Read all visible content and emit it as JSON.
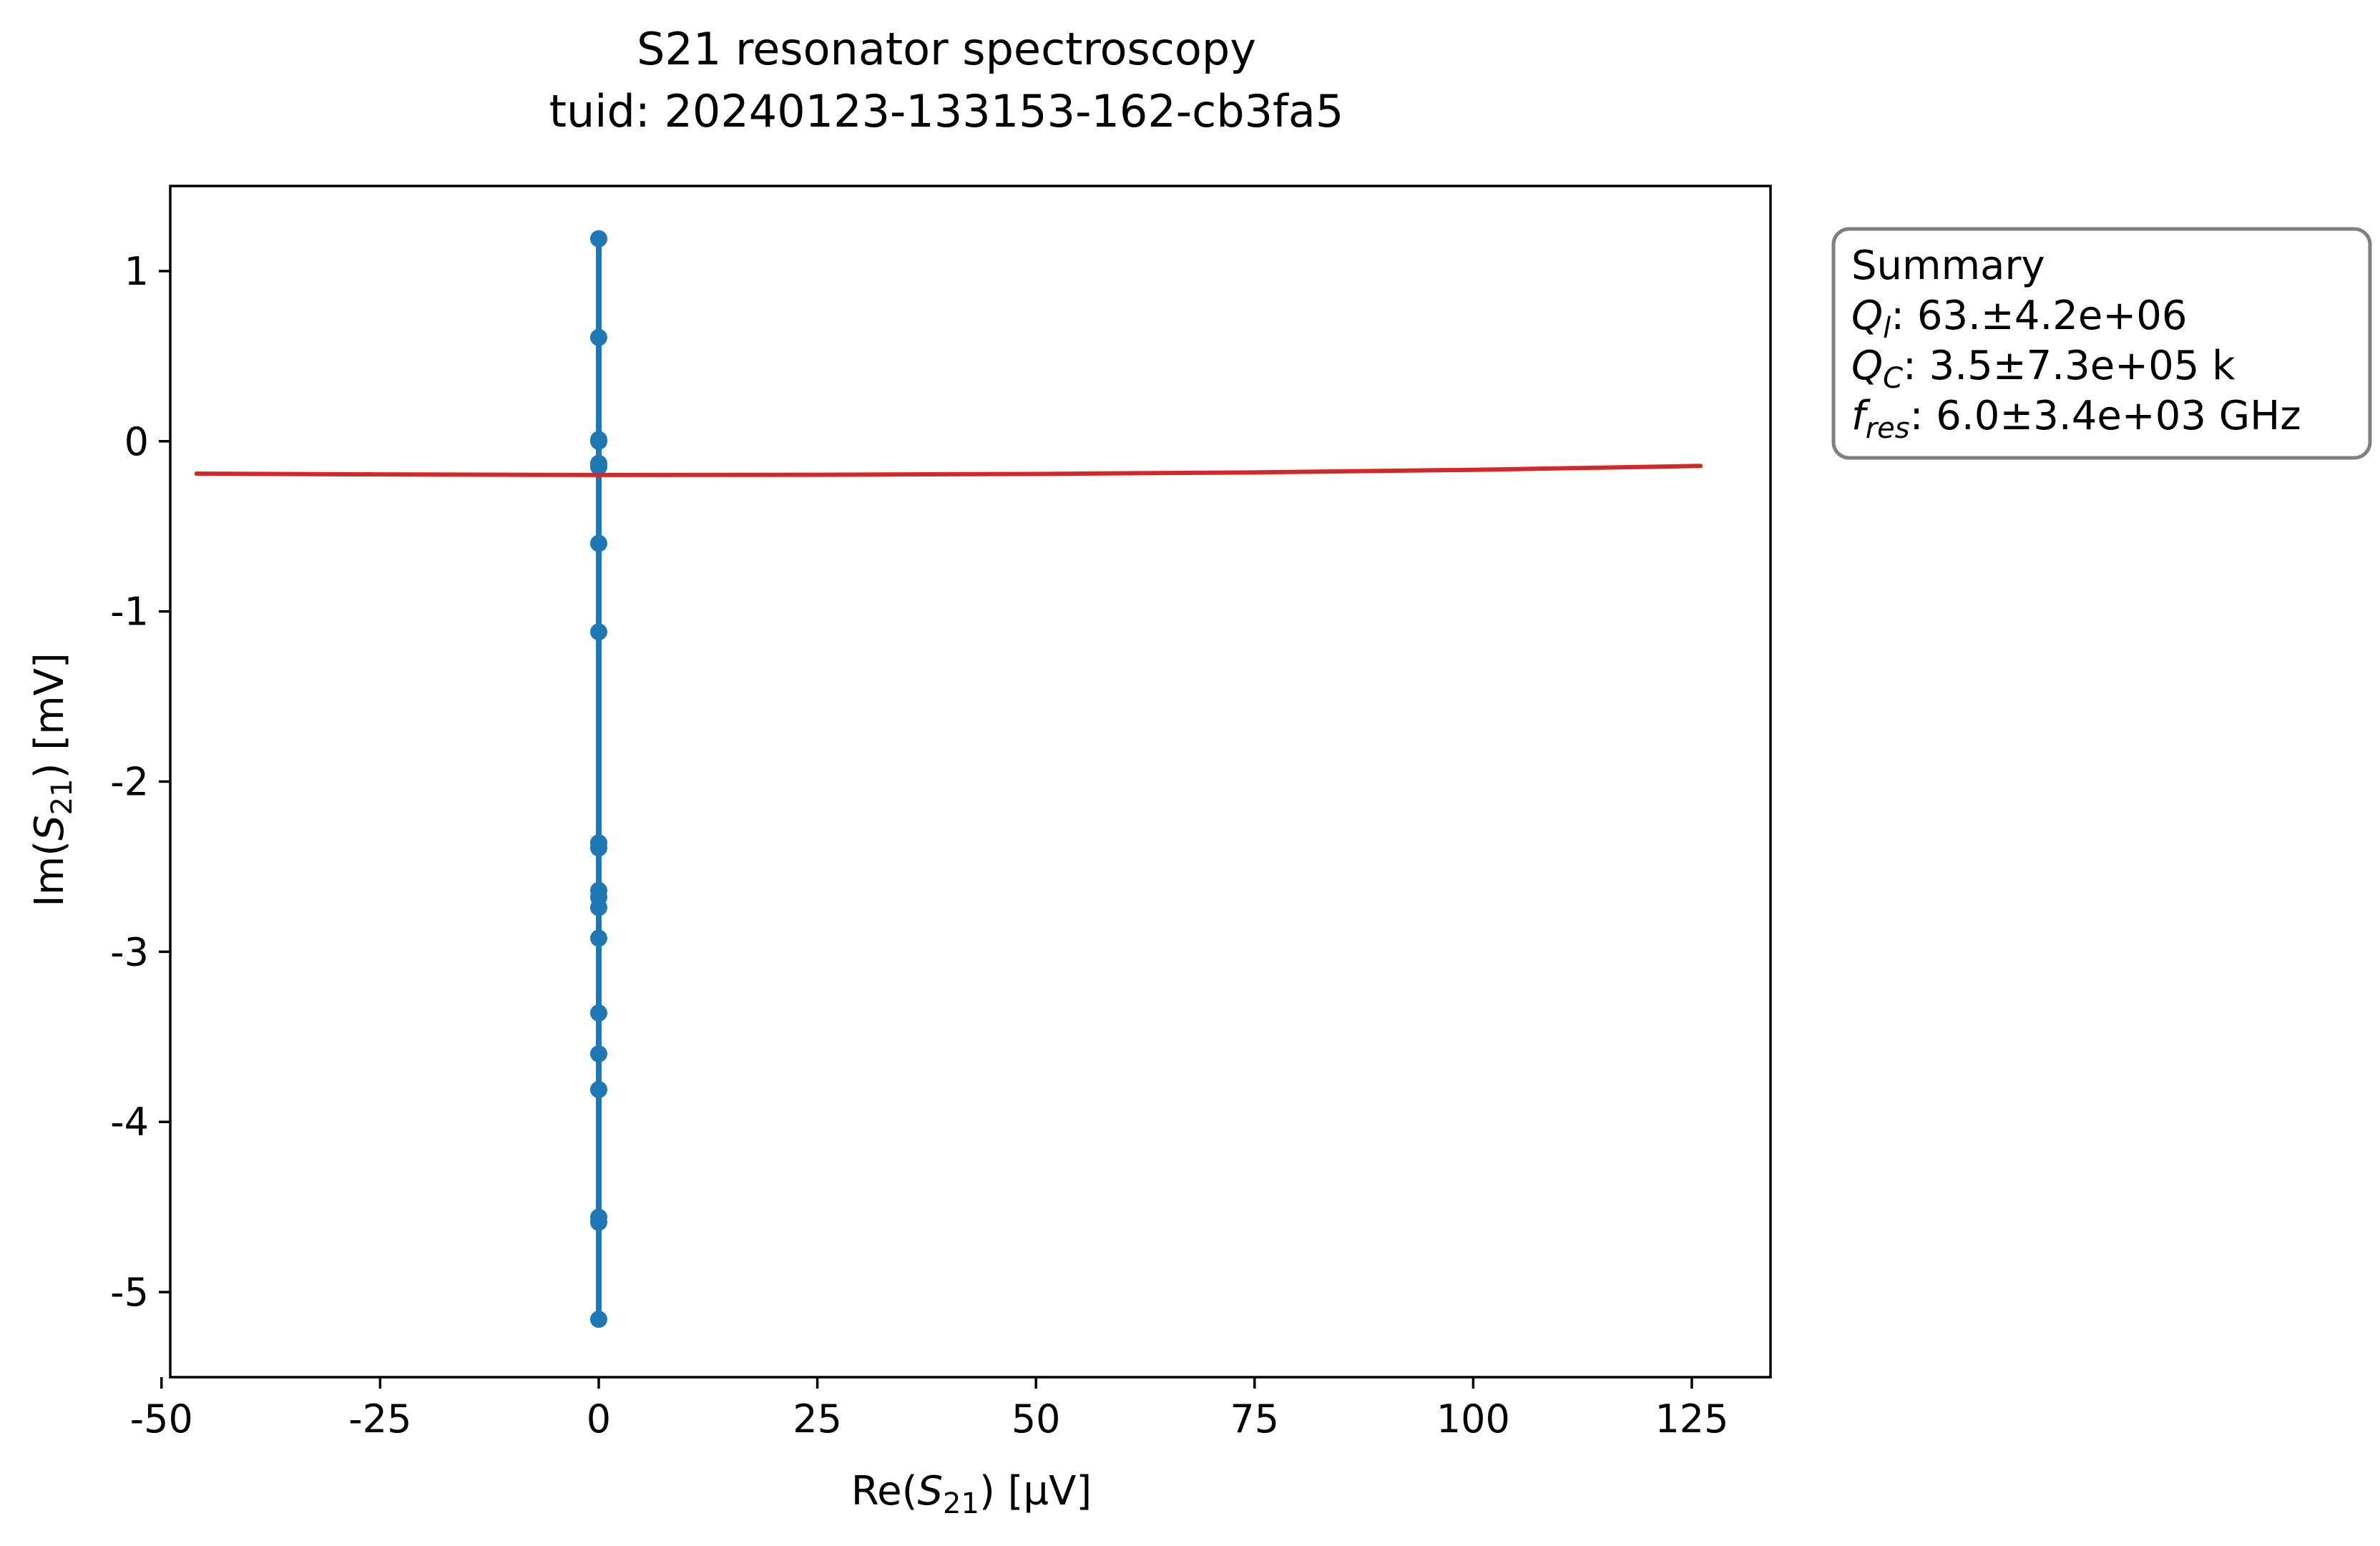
{
  "chart_data": {
    "type": "line",
    "title": "S21 resonator spectroscopy",
    "subtitle": "tuid: 20240123-133153-162-cb3fa5",
    "xlabel": {
      "prefix": "Re(",
      "symbol": "S",
      "sub": "21",
      "suffix": ") [µV]"
    },
    "ylabel": {
      "prefix": "Im(",
      "symbol": "S",
      "sub": "21",
      "suffix": ") [mV]"
    },
    "xlim": [
      -49,
      134
    ],
    "ylim": [
      -5.5,
      1.5
    ],
    "x_ticks": [
      {
        "value": -50,
        "label": "-50"
      },
      {
        "value": -25,
        "label": "-25"
      },
      {
        "value": 0,
        "label": "0"
      },
      {
        "value": 25,
        "label": "25"
      },
      {
        "value": 50,
        "label": "50"
      },
      {
        "value": 75,
        "label": "75"
      },
      {
        "value": 100,
        "label": "100"
      },
      {
        "value": 125,
        "label": "125"
      }
    ],
    "y_ticks": [
      {
        "value": 1,
        "label": "1"
      },
      {
        "value": 0,
        "label": "0"
      },
      {
        "value": -1,
        "label": "-1"
      },
      {
        "value": -2,
        "label": "-2"
      },
      {
        "value": -3,
        "label": "-3"
      },
      {
        "value": -4,
        "label": "-4"
      },
      {
        "value": -5,
        "label": "-5"
      }
    ],
    "grid": false,
    "series": [
      {
        "kind": "line-markers",
        "color": "#1f77b4",
        "x": [
          0,
          0,
          0,
          0,
          0,
          0,
          0,
          0,
          0,
          0,
          0,
          0,
          0,
          0,
          0,
          0,
          0,
          0,
          0,
          0
        ],
        "y": [
          -5.16,
          -4.59,
          -4.56,
          -3.81,
          -3.6,
          -3.36,
          -2.92,
          -2.74,
          -2.68,
          -2.64,
          -2.39,
          -2.36,
          -1.12,
          -0.6,
          -0.15,
          -0.13,
          0.0,
          0.01,
          0.61,
          1.19
        ]
      },
      {
        "kind": "line",
        "color": "#d62728",
        "x": [
          -46,
          -25,
          0,
          25,
          50,
          75,
          100,
          126
        ],
        "y": [
          -0.19,
          -0.195,
          -0.198,
          -0.197,
          -0.192,
          -0.183,
          -0.168,
          -0.145
        ]
      }
    ],
    "annotation": {
      "placement": "right of axes, top",
      "lines": [
        {
          "text": "Summary"
        },
        {
          "symbol": "Q",
          "sub": "l",
          "text": ": 63.±4.2e+06"
        },
        {
          "symbol": "Q",
          "sub": "C",
          "text": ": 3.5±7.3e+05 k"
        },
        {
          "symbol": "f",
          "sub": "res",
          "text": ": 6.0±3.4e+03 GHz"
        }
      ]
    }
  }
}
